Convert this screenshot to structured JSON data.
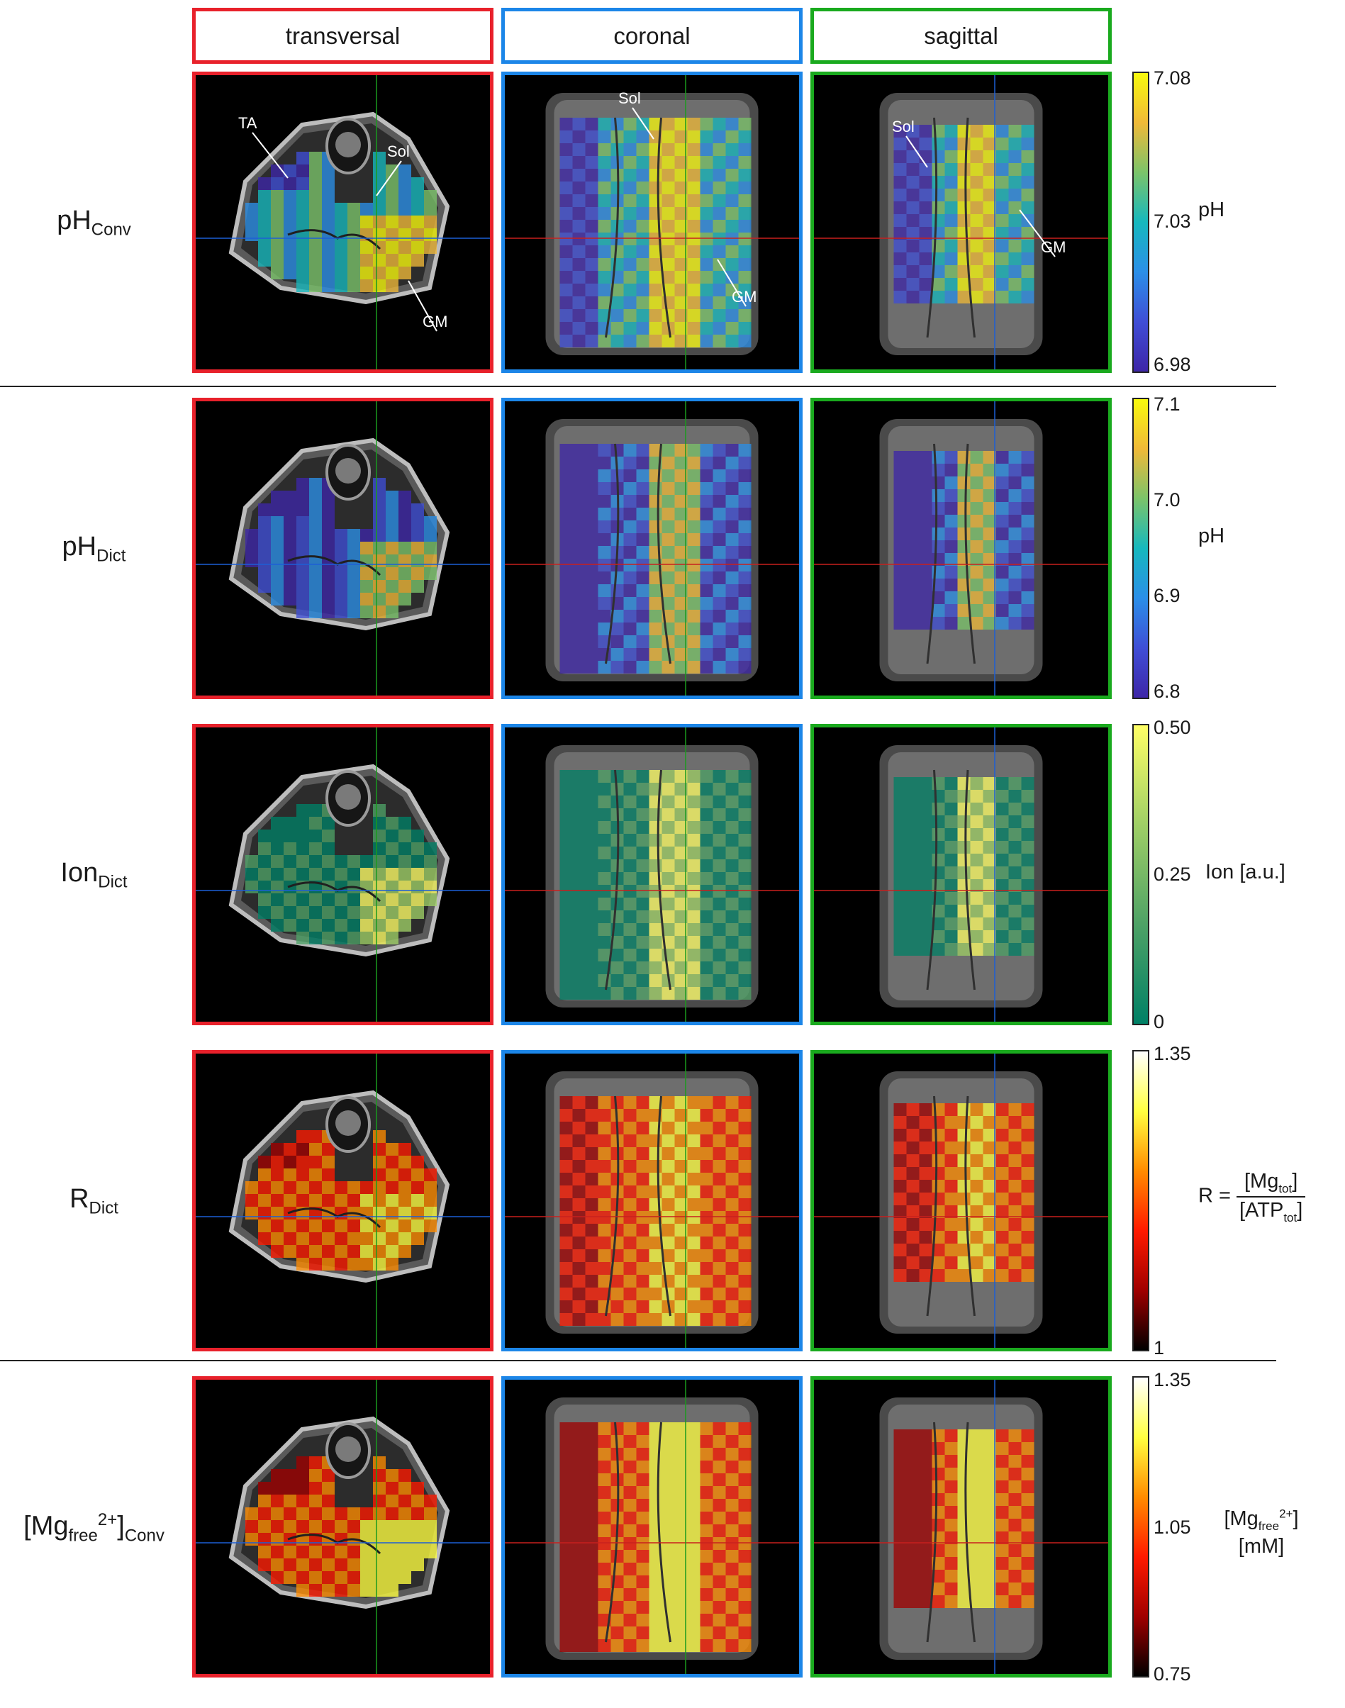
{
  "columns": [
    {
      "label": "transversal",
      "color": "#e8212b"
    },
    {
      "label": "coronal",
      "color": "#1c86e8"
    },
    {
      "label": "sagittal",
      "color": "#1aaa1e"
    }
  ],
  "rows": [
    {
      "base": "pH",
      "sub": "Conv",
      "sup": "",
      "colormap": "parula",
      "ticks": [
        "7.08",
        "7.03",
        "6.98"
      ],
      "unit": "pH"
    },
    {
      "base": "pH",
      "sub": "Dict",
      "sup": "",
      "colormap": "parula",
      "ticks": [
        "7.1",
        "7.0",
        "6.9",
        "6.8"
      ],
      "unit": "pH"
    },
    {
      "base": "Ion",
      "sub": "Dict",
      "sup": "",
      "colormap": "summer",
      "ticks": [
        "0.50",
        "0.25",
        "0"
      ],
      "unit": "Ion [a.u.]"
    },
    {
      "base": "R",
      "sub": "Dict",
      "sup": "",
      "colormap": "hot",
      "ticks": [
        "1.35",
        "1"
      ],
      "unit": ""
    },
    {
      "base": "[Mg",
      "sub": "free",
      "sup": "2+",
      "suffix": "]",
      "suffix_sub": "Conv",
      "colormap": "hot",
      "ticks": [
        "1.35",
        "1.05",
        "0.75"
      ],
      "unit": ""
    }
  ],
  "annotations": {
    "transversal": [
      "TA",
      "Sol",
      "GM"
    ],
    "coronal": [
      "Sol",
      "GM"
    ],
    "sagittal": [
      "Sol",
      "GM"
    ]
  },
  "r_formula": {
    "lhs": "R =",
    "num": "[Mg",
    "num_sub": "tot",
    "num_end": "]",
    "den": "[ATP",
    "den_sub": "tot",
    "den_end": "]"
  },
  "mg_unit": {
    "line1": "[Mg",
    "sub": "free",
    "sup": "2+",
    "end": "]",
    "line2": "[mM]"
  }
}
